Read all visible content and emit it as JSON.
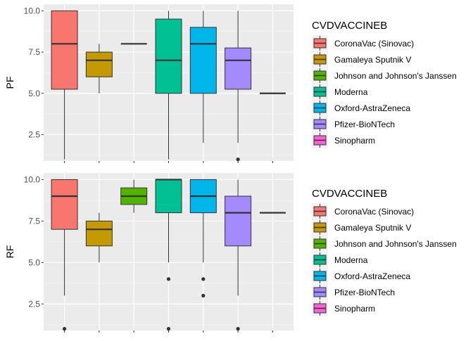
{
  "chart_data": [
    {
      "type": "boxplot",
      "ylabel": "PF",
      "ylim": [
        0.9,
        10.4
      ],
      "yticks": [
        2.5,
        5.0,
        7.5,
        10.0
      ],
      "ytick_labels": [
        "2.5",
        "5.0",
        "7.5",
        "10.0"
      ],
      "grid": true,
      "legend": {
        "title": "CVDVACCINEB",
        "placement": "right",
        "entries": [
          "CoronaVac (Sinovac)",
          "Gamaleya Sputnik V",
          "Johnson and Johnson's Janssen",
          "Moderna",
          "Oxford-AstraZeneca",
          "Pfizer-BioNTech",
          "Sinopharm"
        ]
      },
      "series": [
        {
          "name": "CoronaVac (Sinovac)",
          "color": "#F8766D",
          "min": 1.0,
          "q1": 5.25,
          "median": 8.0,
          "q3": 10.0,
          "max": 10.0,
          "outliers": []
        },
        {
          "name": "Gamaleya Sputnik V",
          "color": "#C49A00",
          "min": 5.0,
          "q1": 6.0,
          "median": 7.0,
          "q3": 7.5,
          "max": 8.0,
          "outliers": []
        },
        {
          "name": "Johnson and Johnson's Janssen",
          "color": "#53B400",
          "min": 8.0,
          "q1": 8.0,
          "median": 8.0,
          "q3": 8.0,
          "max": 8.0,
          "outliers": []
        },
        {
          "name": "Moderna",
          "color": "#00C094",
          "min": 1.0,
          "q1": 5.0,
          "median": 7.0,
          "q3": 9.5,
          "max": 10.0,
          "outliers": []
        },
        {
          "name": "Oxford-AstraZeneca",
          "color": "#00B6EB",
          "min": 2.0,
          "q1": 5.0,
          "median": 8.0,
          "q3": 9.0,
          "max": 10.0,
          "outliers": []
        },
        {
          "name": "Pfizer-BioNTech",
          "color": "#A58AFF",
          "min": 2.0,
          "q1": 5.25,
          "median": 7.0,
          "q3": 7.75,
          "max": 10.0,
          "outliers": [
            1.0
          ]
        },
        {
          "name": "Sinopharm",
          "color": "#FB61D7",
          "min": 5.0,
          "q1": 5.0,
          "median": 5.0,
          "q3": 5.0,
          "max": 5.0,
          "outliers": []
        }
      ]
    },
    {
      "type": "boxplot",
      "ylabel": "RF",
      "ylim": [
        0.9,
        10.4
      ],
      "yticks": [
        2.5,
        5.0,
        7.5,
        10.0
      ],
      "ytick_labels": [
        "2.5",
        "5.0",
        "7.5",
        "10.0"
      ],
      "grid": true,
      "legend": {
        "title": "CVDVACCINEB",
        "placement": "right",
        "entries": [
          "CoronaVac (Sinovac)",
          "Gamaleya Sputnik V",
          "Johnson and Johnson's Janssen",
          "Moderna",
          "Oxford-AstraZeneca",
          "Pfizer-BioNTech",
          "Sinopharm"
        ]
      },
      "series": [
        {
          "name": "CoronaVac (Sinovac)",
          "color": "#F8766D",
          "min": 3.0,
          "q1": 7.0,
          "median": 9.0,
          "q3": 10.0,
          "max": 10.0,
          "outliers": [
            1.0
          ]
        },
        {
          "name": "Gamaleya Sputnik V",
          "color": "#C49A00",
          "min": 5.0,
          "q1": 6.0,
          "median": 7.0,
          "q3": 7.5,
          "max": 8.0,
          "outliers": []
        },
        {
          "name": "Johnson and Johnson's Janssen",
          "color": "#53B400",
          "min": 8.0,
          "q1": 8.5,
          "median": 9.0,
          "q3": 9.5,
          "max": 10.0,
          "outliers": []
        },
        {
          "name": "Moderna",
          "color": "#00C094",
          "min": 5.0,
          "q1": 8.0,
          "median": 10.0,
          "q3": 10.0,
          "max": 10.0,
          "outliers": [
            4.0,
            1.0
          ]
        },
        {
          "name": "Oxford-AstraZeneca",
          "color": "#00B6EB",
          "min": 5.0,
          "q1": 8.0,
          "median": 9.0,
          "q3": 10.0,
          "max": 10.0,
          "outliers": [
            4.0,
            3.0
          ]
        },
        {
          "name": "Pfizer-BioNTech",
          "color": "#A58AFF",
          "min": 3.0,
          "q1": 6.0,
          "median": 8.0,
          "q3": 9.0,
          "max": 10.0,
          "outliers": [
            1.0
          ]
        },
        {
          "name": "Sinopharm",
          "color": "#FB61D7",
          "min": 8.0,
          "q1": 8.0,
          "median": 8.0,
          "q3": 8.0,
          "max": 8.0,
          "outliers": []
        }
      ]
    }
  ]
}
